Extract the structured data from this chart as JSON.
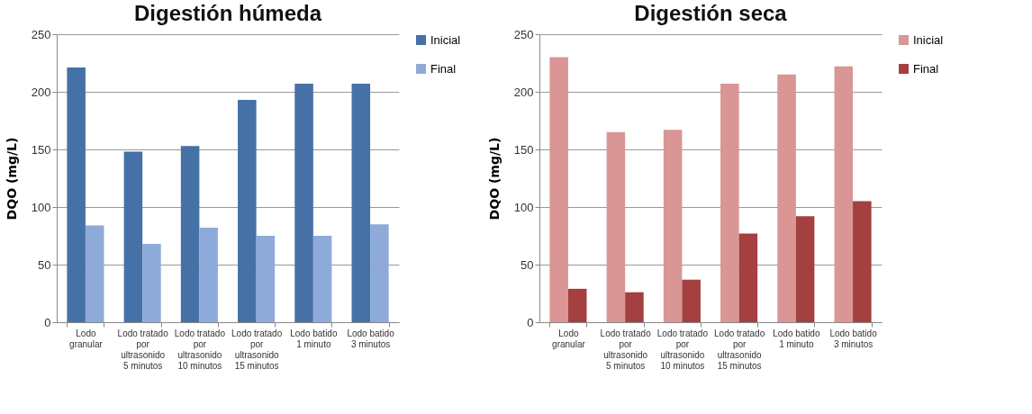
{
  "chart_data": [
    {
      "type": "bar",
      "title": "Digestión húmeda",
      "ylabel": "DQO  (mg/L)",
      "categories": [
        "Lodo granular",
        "Lodo tratado por ultrasonido 5 minutos",
        "Lodo tratado por ultrasonido 10 minutos",
        "Lodo tratado por ultrasonido 15 minutos",
        "Lodo batido 1 minuto",
        "Lodo batido 3 minutos"
      ],
      "series": [
        {
          "name": "Inicial",
          "color": "#4571a6",
          "values": [
            221,
            148,
            153,
            193,
            207,
            207
          ]
        },
        {
          "name": "Final",
          "color": "#8eaad8",
          "values": [
            84,
            68,
            82,
            75,
            75,
            85
          ]
        }
      ],
      "ylim": [
        0,
        250
      ],
      "yticks": [
        0,
        50,
        100,
        150,
        200,
        250
      ],
      "grid": "y",
      "legend": "right"
    },
    {
      "type": "bar",
      "title": "Digestión seca",
      "ylabel": "DQO  (mg/L)",
      "categories": [
        "Lodo granular",
        "Lodo tratado por ultrasonido 5 minutos",
        "Lodo tratado por ultrasonido 10 minutos",
        "Lodo tratado por ultrasonido 15 minutos",
        "Lodo batido 1 minuto",
        "Lodo batido 3 minutos"
      ],
      "series": [
        {
          "name": "Inicial",
          "color": "#d99695",
          "values": [
            230,
            165,
            167,
            207,
            215,
            222
          ]
        },
        {
          "name": "Final",
          "color": "#a4403f",
          "values": [
            29,
            26,
            37,
            77,
            92,
            105
          ]
        }
      ],
      "ylim": [
        0,
        250
      ],
      "yticks": [
        0,
        50,
        100,
        150,
        200,
        250
      ],
      "grid": "y",
      "legend": "right"
    }
  ]
}
